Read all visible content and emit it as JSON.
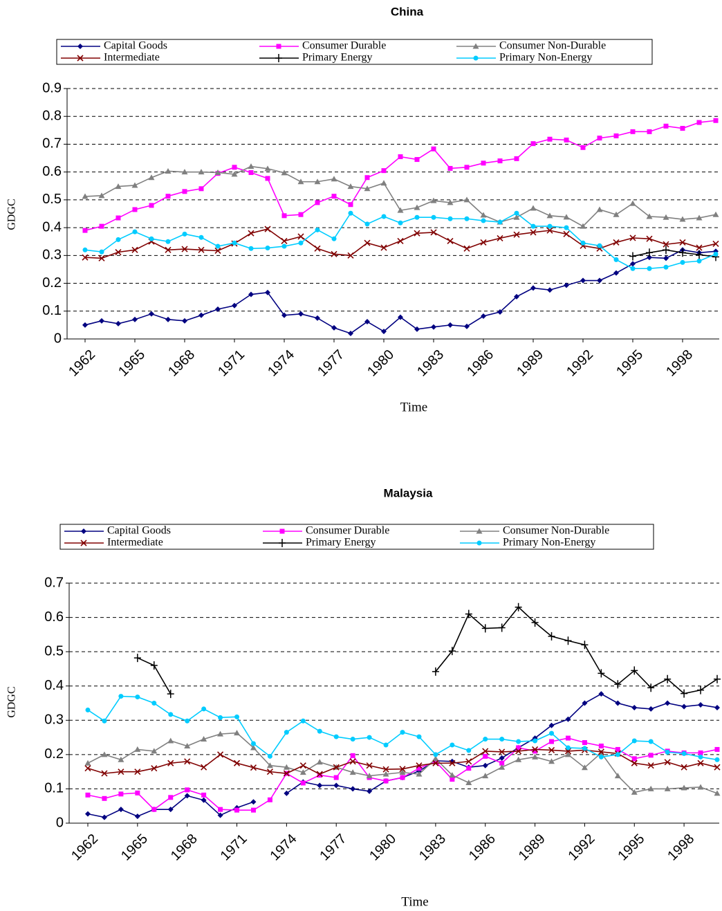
{
  "chart_data": [
    {
      "type": "line",
      "title": "China",
      "xlabel": "Time",
      "ylabel": "GDGC",
      "categories": [
        "1962",
        null,
        null,
        "1965",
        null,
        null,
        "1968",
        null,
        null,
        "1971",
        null,
        null,
        "1974",
        null,
        null,
        "1977",
        null,
        null,
        "1980",
        null,
        null,
        "1983",
        null,
        null,
        "1986",
        null,
        null,
        "1989",
        null,
        null,
        "1992",
        null,
        null,
        "1995",
        null,
        null,
        "1998",
        null,
        null
      ],
      "ylim": [
        0,
        0.9
      ],
      "yticks": [
        0,
        0.1,
        0.2,
        0.3,
        0.4,
        0.5,
        0.6,
        0.7,
        0.8,
        0.9
      ],
      "grid": true,
      "legend": "top",
      "series": [
        {
          "name": "Capital Goods",
          "color": "#000080",
          "marker": "diamond",
          "values": [
            0.05,
            0.065,
            0.055,
            0.07,
            0.09,
            0.07,
            0.065,
            0.085,
            0.107,
            0.12,
            0.16,
            0.167,
            0.085,
            0.09,
            0.075,
            0.04,
            0.02,
            0.062,
            0.027,
            0.078,
            0.035,
            0.043,
            0.05,
            0.045,
            0.082,
            0.097,
            0.152,
            0.183,
            0.176,
            0.193,
            0.21,
            0.21,
            0.237,
            0.27,
            0.293,
            0.29,
            0.32,
            0.31,
            0.315
          ]
        },
        {
          "name": "Consumer Durable",
          "color": "#ff00ff",
          "marker": "square",
          "values": [
            0.39,
            0.405,
            0.435,
            0.465,
            0.48,
            0.513,
            0.53,
            0.54,
            0.595,
            0.617,
            0.598,
            0.577,
            0.443,
            0.447,
            0.49,
            0.513,
            0.483,
            0.58,
            0.605,
            0.655,
            0.645,
            0.683,
            0.613,
            0.617,
            0.632,
            0.64,
            0.648,
            0.702,
            0.718,
            0.715,
            0.688,
            0.722,
            0.73,
            0.745,
            0.745,
            0.765,
            0.757,
            0.778,
            0.785
          ]
        },
        {
          "name": "Consumer Non-Durable",
          "color": "#808080",
          "marker": "triangle",
          "values": [
            0.512,
            0.515,
            0.548,
            0.552,
            0.58,
            0.603,
            0.6,
            0.6,
            0.598,
            0.592,
            0.62,
            0.612,
            0.597,
            0.565,
            0.565,
            0.575,
            0.548,
            0.54,
            0.56,
            0.462,
            0.472,
            0.497,
            0.49,
            0.5,
            0.445,
            0.42,
            0.437,
            0.47,
            0.443,
            0.438,
            0.405,
            0.465,
            0.447,
            0.487,
            0.44,
            0.437,
            0.43,
            0.435,
            0.447
          ]
        },
        {
          "name": "Intermediate",
          "color": "#800000",
          "marker": "cross",
          "values": [
            0.293,
            0.29,
            0.312,
            0.32,
            0.35,
            0.32,
            0.323,
            0.32,
            0.317,
            0.343,
            0.38,
            0.395,
            0.352,
            0.368,
            0.325,
            0.305,
            0.3,
            0.345,
            0.328,
            0.352,
            0.38,
            0.383,
            0.352,
            0.325,
            0.347,
            0.362,
            0.375,
            0.383,
            0.39,
            0.377,
            0.335,
            0.325,
            0.347,
            0.363,
            0.36,
            0.34,
            0.347,
            0.328,
            0.342
          ]
        },
        {
          "name": "Primary Energy",
          "color": "#000000",
          "marker": "plus",
          "values": [
            null,
            null,
            null,
            null,
            null,
            null,
            null,
            null,
            null,
            null,
            null,
            null,
            null,
            null,
            null,
            null,
            null,
            null,
            null,
            null,
            null,
            null,
            null,
            null,
            null,
            null,
            null,
            null,
            null,
            null,
            null,
            null,
            null,
            0.297,
            0.31,
            0.32,
            0.31,
            0.303,
            0.295
          ]
        },
        {
          "name": "Primary Non-Energy",
          "color": "#00ccff",
          "marker": "circle",
          "values": [
            0.32,
            0.313,
            0.357,
            0.385,
            0.36,
            0.35,
            0.377,
            0.365,
            0.333,
            0.345,
            0.325,
            0.327,
            0.333,
            0.345,
            0.392,
            0.36,
            0.452,
            0.413,
            0.44,
            0.417,
            0.437,
            0.437,
            0.432,
            0.432,
            0.425,
            0.42,
            0.452,
            0.405,
            0.405,
            0.4,
            0.345,
            0.335,
            0.285,
            0.253,
            0.253,
            0.258,
            0.275,
            0.28,
            0.305
          ]
        }
      ]
    },
    {
      "type": "line",
      "title": "Malaysia",
      "xlabel": "Time",
      "ylabel": "GDGC",
      "categories": [
        "1962",
        null,
        null,
        "1965",
        null,
        null,
        "1968",
        null,
        null,
        "1971",
        null,
        null,
        "1974",
        null,
        null,
        "1977",
        null,
        null,
        "1980",
        null,
        null,
        "1983",
        null,
        null,
        "1986",
        null,
        null,
        "1989",
        null,
        null,
        "1992",
        null,
        null,
        "1995",
        null,
        null,
        "1998",
        null,
        null
      ],
      "ylim": [
        0,
        0.7
      ],
      "yticks": [
        0,
        0.1,
        0.2,
        0.3,
        0.4,
        0.5,
        0.6,
        0.7
      ],
      "grid": true,
      "legend": "top",
      "series": [
        {
          "name": "Capital Goods",
          "color": "#000080",
          "marker": "diamond",
          "values": [
            0.027,
            0.017,
            0.04,
            0.02,
            0.04,
            0.04,
            0.08,
            0.067,
            0.023,
            0.045,
            0.062,
            null,
            0.087,
            0.12,
            0.11,
            0.11,
            0.1,
            0.093,
            0.123,
            0.133,
            0.152,
            0.182,
            0.18,
            0.163,
            0.168,
            0.19,
            0.22,
            0.248,
            0.285,
            0.303,
            0.35,
            0.377,
            0.35,
            0.337,
            0.333,
            0.35,
            0.34,
            0.345,
            0.337
          ]
        },
        {
          "name": "Consumer Durable",
          "color": "#ff00ff",
          "marker": "square",
          "values": [
            0.082,
            0.072,
            0.085,
            0.088,
            0.04,
            0.075,
            0.097,
            0.082,
            0.04,
            0.038,
            0.038,
            0.068,
            0.145,
            0.117,
            0.14,
            0.133,
            0.197,
            0.133,
            0.123,
            0.133,
            0.16,
            0.18,
            0.128,
            0.16,
            0.195,
            0.175,
            0.22,
            0.21,
            0.238,
            0.248,
            0.235,
            0.225,
            0.215,
            0.188,
            0.198,
            0.21,
            0.205,
            0.205,
            0.215
          ]
        },
        {
          "name": "Consumer Non-Durable",
          "color": "#808080",
          "marker": "triangle",
          "values": [
            0.175,
            0.2,
            0.185,
            0.215,
            0.21,
            0.24,
            0.225,
            0.245,
            0.26,
            0.263,
            0.22,
            0.168,
            0.163,
            0.148,
            0.178,
            0.163,
            0.148,
            0.138,
            0.143,
            0.148,
            0.143,
            0.188,
            0.14,
            0.118,
            0.138,
            0.163,
            0.185,
            0.193,
            0.18,
            0.2,
            0.162,
            0.205,
            0.138,
            0.09,
            0.1,
            0.1,
            0.103,
            0.105,
            0.087
          ]
        },
        {
          "name": "Intermediate",
          "color": "#800000",
          "marker": "cross",
          "values": [
            0.16,
            0.145,
            0.15,
            0.15,
            0.16,
            0.175,
            0.18,
            0.163,
            0.2,
            0.175,
            0.162,
            0.15,
            0.145,
            0.168,
            0.143,
            0.163,
            0.18,
            0.168,
            0.157,
            0.158,
            0.168,
            0.175,
            0.175,
            0.18,
            0.21,
            0.208,
            0.21,
            0.215,
            0.213,
            0.21,
            0.213,
            0.208,
            0.203,
            0.175,
            0.168,
            0.178,
            0.163,
            0.175,
            0.163
          ]
        },
        {
          "name": "Primary Energy",
          "color": "#000000",
          "marker": "plus",
          "values": [
            null,
            null,
            null,
            0.482,
            0.46,
            0.377,
            null,
            null,
            null,
            null,
            null,
            null,
            null,
            null,
            null,
            null,
            null,
            null,
            null,
            null,
            null,
            0.442,
            0.502,
            0.61,
            0.568,
            0.57,
            0.63,
            0.585,
            0.545,
            0.532,
            0.52,
            0.437,
            0.405,
            0.445,
            0.395,
            0.42,
            0.378,
            0.388,
            0.42
          ]
        },
        {
          "name": "Primary Non-Energy",
          "color": "#00ccff",
          "marker": "circle",
          "values": [
            0.33,
            0.298,
            0.37,
            0.368,
            0.35,
            0.317,
            0.298,
            0.333,
            0.308,
            0.31,
            0.232,
            0.195,
            0.265,
            0.298,
            0.268,
            0.252,
            0.245,
            0.25,
            0.228,
            0.265,
            0.252,
            0.2,
            0.228,
            0.212,
            0.245,
            0.245,
            0.238,
            0.24,
            0.262,
            0.22,
            0.218,
            0.193,
            0.2,
            0.24,
            0.238,
            0.207,
            0.203,
            0.193,
            0.185
          ]
        }
      ]
    }
  ]
}
